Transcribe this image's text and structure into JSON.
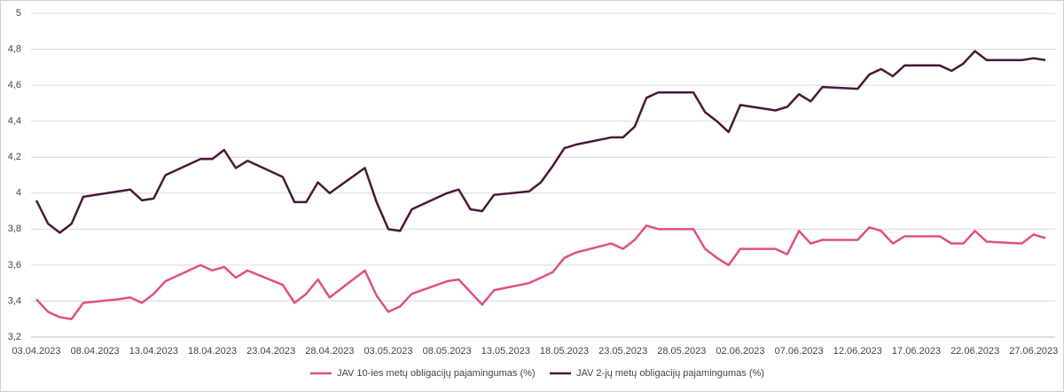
{
  "chart_data": {
    "type": "line",
    "x": [
      "03.04.2023",
      "04.04.2023",
      "05.04.2023",
      "06.04.2023",
      "07.04.2023",
      "10.04.2023",
      "11.04.2023",
      "12.04.2023",
      "13.04.2023",
      "14.04.2023",
      "17.04.2023",
      "18.04.2023",
      "19.04.2023",
      "20.04.2023",
      "21.04.2023",
      "24.04.2023",
      "25.04.2023",
      "26.04.2023",
      "27.04.2023",
      "28.04.2023",
      "01.05.2023",
      "02.05.2023",
      "03.05.2023",
      "04.05.2023",
      "05.05.2023",
      "08.05.2023",
      "09.05.2023",
      "10.05.2023",
      "11.05.2023",
      "12.05.2023",
      "15.05.2023",
      "16.05.2023",
      "17.05.2023",
      "18.05.2023",
      "19.05.2023",
      "22.05.2023",
      "23.05.2023",
      "24.05.2023",
      "25.05.2023",
      "26.05.2023",
      "29.05.2023",
      "30.05.2023",
      "31.05.2023",
      "01.06.2023",
      "02.06.2023",
      "05.06.2023",
      "06.06.2023",
      "07.06.2023",
      "08.06.2023",
      "09.06.2023",
      "12.06.2023",
      "13.06.2023",
      "14.06.2023",
      "15.06.2023",
      "16.06.2023",
      "19.06.2023",
      "20.06.2023",
      "21.06.2023",
      "22.06.2023",
      "23.06.2023",
      "26.06.2023",
      "27.06.2023",
      "28.06.2023"
    ],
    "series": [
      {
        "name": "JAV 10-ies metų obligacijų pajamingumas (%)",
        "color": "#e0507e",
        "values": [
          3.41,
          3.34,
          3.31,
          3.3,
          3.39,
          3.41,
          3.42,
          3.39,
          3.44,
          3.51,
          3.6,
          3.57,
          3.59,
          3.53,
          3.57,
          3.49,
          3.39,
          3.44,
          3.52,
          3.42,
          3.57,
          3.43,
          3.34,
          3.37,
          3.44,
          3.51,
          3.52,
          3.45,
          3.38,
          3.46,
          3.5,
          3.53,
          3.56,
          3.64,
          3.67,
          3.72,
          3.69,
          3.74,
          3.82,
          3.8,
          3.8,
          3.69,
          3.64,
          3.6,
          3.69,
          3.69,
          3.66,
          3.79,
          3.72,
          3.74,
          3.74,
          3.81,
          3.79,
          3.72,
          3.76,
          3.76,
          3.72,
          3.72,
          3.79,
          3.73,
          3.72,
          3.77,
          3.75
        ]
      },
      {
        "name": "JAV 2-jų metų obligacijų pajamingumas (%)",
        "color": "#4a1838",
        "values": [
          3.96,
          3.83,
          3.78,
          3.83,
          3.98,
          4.01,
          4.02,
          3.96,
          3.97,
          4.1,
          4.19,
          4.19,
          4.24,
          4.14,
          4.18,
          4.09,
          3.95,
          3.95,
          4.06,
          4.0,
          4.14,
          3.95,
          3.8,
          3.79,
          3.91,
          4.0,
          4.02,
          3.91,
          3.9,
          3.99,
          4.01,
          4.06,
          4.15,
          4.25,
          4.27,
          4.31,
          4.31,
          4.37,
          4.53,
          4.56,
          4.56,
          4.45,
          4.4,
          4.34,
          4.49,
          4.46,
          4.48,
          4.55,
          4.51,
          4.59,
          4.58,
          4.66,
          4.69,
          4.65,
          4.71,
          4.71,
          4.68,
          4.72,
          4.79,
          4.74,
          4.74,
          4.75,
          4.74
        ]
      }
    ],
    "xlim": [
      "03.04.2023",
      "28.06.2023"
    ],
    "xticks": [
      "03.04.2023",
      "08.04.2023",
      "13.04.2023",
      "18.04.2023",
      "23.04.2023",
      "28.04.2023",
      "03.05.2023",
      "08.05.2023",
      "13.05.2023",
      "18.05.2023",
      "23.05.2023",
      "28.05.2023",
      "02.06.2023",
      "07.06.2023",
      "12.06.2023",
      "17.06.2023",
      "22.06.2023",
      "27.06.2023"
    ],
    "ylim": [
      3.2,
      5
    ],
    "yticks": [
      {
        "value": 3.2,
        "label": "3,2"
      },
      {
        "value": 3.4,
        "label": "3,4"
      },
      {
        "value": 3.6,
        "label": "3,6"
      },
      {
        "value": 3.8,
        "label": "3,8"
      },
      4,
      {
        "value": 4.2,
        "label": "4,2"
      },
      {
        "value": 4.4,
        "label": "4,4"
      },
      {
        "value": 4.6,
        "label": "4,6"
      },
      {
        "value": 4.8,
        "label": "4,8"
      },
      5
    ],
    "grid": true,
    "legend": "bottom"
  }
}
